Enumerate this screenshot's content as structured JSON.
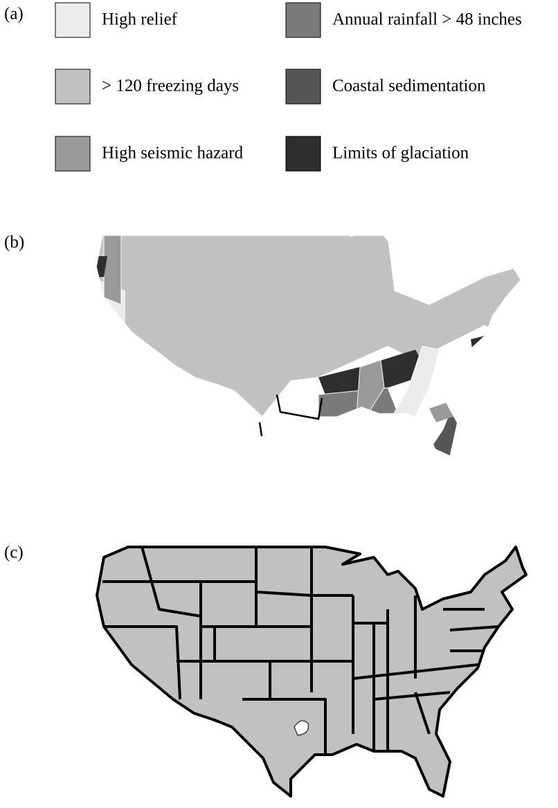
{
  "panels": [
    {
      "label": "(a)"
    },
    {
      "label": "(b)"
    },
    {
      "label": "(c)"
    }
  ],
  "legend": [
    {
      "label": "High relief",
      "color": "#ebebeb"
    },
    {
      "label": "> 120 freezing days",
      "color": "#c1c1c1"
    },
    {
      "label": "High seismic hazard",
      "color": "#9a9a9a"
    },
    {
      "label": "Annual rainfall > 48 inches",
      "color": "#7a7a7a"
    },
    {
      "label": "Coastal sedimentation",
      "color": "#565656"
    },
    {
      "label": "Limits of glaciation",
      "color": "#2e2e2e"
    }
  ]
}
